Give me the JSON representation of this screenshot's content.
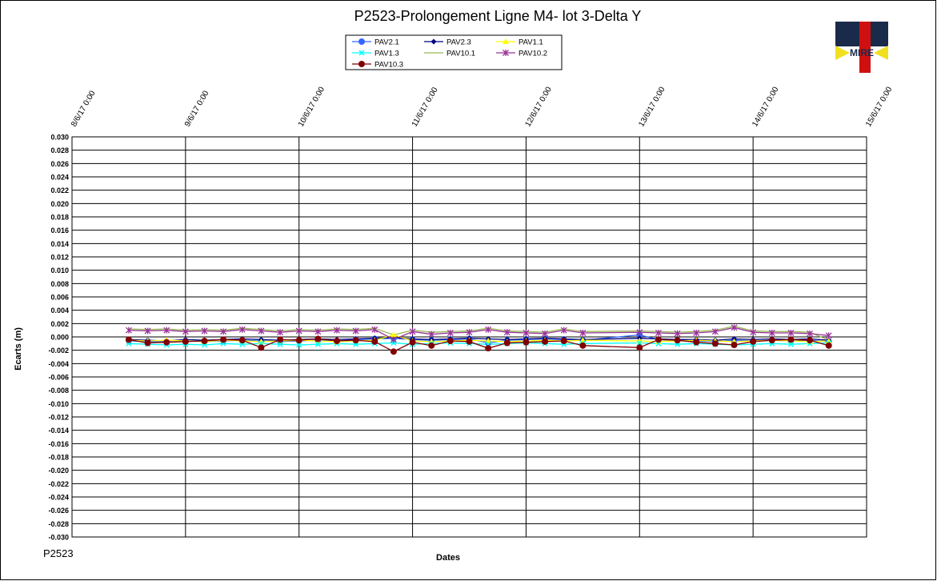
{
  "chart_data": {
    "type": "line",
    "title": "P2523-Prolongement  Ligne  M4- lot 3-Delta Y",
    "x_label": "Dates",
    "y_label": "Ecarts (m)",
    "footer": "P2523",
    "logo": "MIRE",
    "grid": true,
    "x": [
      "2017-06-08T12:00",
      "2017-06-08T16:00",
      "2017-06-08T20:00",
      "2017-06-09T00:00",
      "2017-06-09T04:00",
      "2017-06-09T08:00",
      "2017-06-09T12:00",
      "2017-06-09T16:00",
      "2017-06-09T20:00",
      "2017-06-10T00:00",
      "2017-06-10T04:00",
      "2017-06-10T08:00",
      "2017-06-10T12:00",
      "2017-06-10T16:00",
      "2017-06-10T20:00",
      "2017-06-11T00:00",
      "2017-06-11T04:00",
      "2017-06-11T08:00",
      "2017-06-11T12:00",
      "2017-06-11T16:00",
      "2017-06-11T20:00",
      "2017-06-12T00:00",
      "2017-06-12T04:00",
      "2017-06-12T08:00",
      "2017-06-12T12:00",
      "2017-06-13T00:00",
      "2017-06-13T04:00",
      "2017-06-13T08:00",
      "2017-06-13T12:00",
      "2017-06-13T16:00",
      "2017-06-13T20:00",
      "2017-06-14T00:00",
      "2017-06-14T04:00",
      "2017-06-14T08:00",
      "2017-06-14T12:00",
      "2017-06-14T16:00"
    ],
    "xlim": [
      "2017-06-08T00:00",
      "2017-06-15T00:00"
    ],
    "xticks": [
      {
        "value": "2017-06-08T00:00",
        "label": "8/6/17 0:00"
      },
      {
        "value": "2017-06-09T00:00",
        "label": "9/6/17 0:00"
      },
      {
        "value": "2017-06-10T00:00",
        "label": "10/6/17 0:00"
      },
      {
        "value": "2017-06-11T00:00",
        "label": "11/6/17 0:00"
      },
      {
        "value": "2017-06-12T00:00",
        "label": "12/6/17 0:00"
      },
      {
        "value": "2017-06-13T00:00",
        "label": "13/6/17 0:00"
      },
      {
        "value": "2017-06-14T00:00",
        "label": "14/6/17 0:00"
      },
      {
        "value": "2017-06-15T00:00",
        "label": "15/6/17 0:00"
      }
    ],
    "ylim": [
      -0.03,
      0.03
    ],
    "yticks": [
      {
        "value": -0.03,
        "label": "-0.030"
      },
      {
        "value": -0.028,
        "label": "-0.028"
      },
      {
        "value": -0.026,
        "label": "-0.026"
      },
      {
        "value": -0.024,
        "label": "-0.024"
      },
      {
        "value": -0.022,
        "label": "-0.022"
      },
      {
        "value": -0.02,
        "label": "-0.020"
      },
      {
        "value": -0.018,
        "label": "-0.018"
      },
      {
        "value": -0.016,
        "label": "-0.016"
      },
      {
        "value": -0.014,
        "label": "-0.014"
      },
      {
        "value": -0.012,
        "label": "-0.012"
      },
      {
        "value": -0.01,
        "label": "-0.010"
      },
      {
        "value": -0.008,
        "label": "-0.008"
      },
      {
        "value": -0.006,
        "label": "-0.006"
      },
      {
        "value": -0.004,
        "label": "-0.004"
      },
      {
        "value": -0.002,
        "label": "-0.002"
      },
      {
        "value": 0,
        "label": "0.000"
      },
      {
        "value": 0.002,
        "label": "0.002"
      },
      {
        "value": 0.004,
        "label": "0.004"
      },
      {
        "value": 0.006,
        "label": "0.006"
      },
      {
        "value": 0.008,
        "label": "0.008"
      },
      {
        "value": 0.01,
        "label": "0.010"
      },
      {
        "value": 0.012,
        "label": "0.012"
      },
      {
        "value": 0.014,
        "label": "0.014"
      },
      {
        "value": 0.016,
        "label": "0.016"
      },
      {
        "value": 0.018,
        "label": "0.018"
      },
      {
        "value": 0.02,
        "label": "0.020"
      },
      {
        "value": 0.022,
        "label": "0.022"
      },
      {
        "value": 0.024,
        "label": "0.024"
      },
      {
        "value": 0.026,
        "label": "0.026"
      },
      {
        "value": 0.028,
        "label": "0.028"
      },
      {
        "value": 0.03,
        "label": "0.030"
      }
    ],
    "series": [
      {
        "name": "PAV2.1",
        "color": "#3366ff",
        "marker": "circle",
        "values": [
          -0.0006,
          -0.0007,
          -0.0008,
          -0.0006,
          -0.0007,
          -0.0006,
          -0.0005,
          -0.0006,
          -0.0007,
          -0.0006,
          -0.0005,
          -0.0006,
          -0.0004,
          -0.0003,
          -0.0002,
          -0.0004,
          -0.0005,
          -0.0004,
          -0.0003,
          -0.0009,
          -0.0005,
          -0.0004,
          -0.0003,
          -0.0004,
          -0.0005,
          0.0003,
          -0.0004,
          -0.0005,
          -0.0006,
          -0.0007,
          -0.0005,
          -0.0006,
          -0.0005,
          -0.0006,
          -0.0005,
          -0.0007
        ]
      },
      {
        "name": "PAV2.3",
        "color": "#000080",
        "marker": "diamond",
        "values": [
          -0.0004,
          -0.0005,
          -0.0006,
          -0.0004,
          -0.0005,
          -0.0004,
          -0.0003,
          -0.0004,
          -0.0005,
          -0.0004,
          -0.0003,
          -0.0004,
          -0.0003,
          -0.0002,
          -0.0001,
          -0.0003,
          -0.0004,
          -0.0003,
          -0.0002,
          -0.0003,
          -0.0004,
          -0.0003,
          -0.0002,
          -0.0003,
          -0.0004,
          -0.0002,
          -0.0003,
          -0.0004,
          -0.0004,
          -0.0005,
          -0.0003,
          -0.0004,
          -0.0003,
          -0.0004,
          -0.0003,
          -0.0005
        ]
      },
      {
        "name": "PAV1.1",
        "color": "#ffff00",
        "marker": "triangle",
        "values": [
          -0.0005,
          -0.0006,
          -0.0005,
          -0.0006,
          -0.0007,
          -0.0005,
          -0.0006,
          -0.0007,
          -0.0006,
          -0.0005,
          -0.0006,
          -0.0007,
          -0.0006,
          -0.0005,
          0.0003,
          -0.0006,
          -0.0007,
          -0.0006,
          -0.0005,
          -0.0006,
          -0.0007,
          -0.0006,
          -0.0005,
          -0.0006,
          -0.0005,
          -0.0006,
          -0.0007,
          -0.0006,
          -0.0005,
          -0.0006,
          -0.0007,
          -0.0006,
          -0.0005,
          -0.0006,
          -0.0007,
          -0.0006
        ]
      },
      {
        "name": "PAV1.3",
        "color": "#00ffff",
        "marker": "x",
        "values": [
          -0.001,
          -0.0011,
          -0.0012,
          -0.0011,
          -0.0012,
          -0.001,
          -0.0011,
          -0.001,
          -0.0011,
          -0.0012,
          -0.0011,
          -0.001,
          -0.0011,
          -0.001,
          -0.0009,
          -0.0011,
          -0.001,
          -0.0009,
          -0.001,
          -0.0011,
          -0.001,
          -0.0009,
          -0.001,
          -0.0011,
          -0.001,
          -0.0009,
          -0.001,
          -0.0011,
          -0.001,
          -0.0011,
          -0.0012,
          -0.0011,
          -0.001,
          -0.0011,
          -0.001,
          -0.0009
        ]
      },
      {
        "name": "PAV10.1",
        "color": "#99bb55",
        "marker": "none",
        "values": [
          0.0012,
          0.0011,
          0.0012,
          0.001,
          0.0011,
          0.001,
          0.0013,
          0.0011,
          0.0009,
          0.0011,
          0.001,
          0.0012,
          0.0011,
          0.0013,
          0.0003,
          0.001,
          0.0007,
          0.0008,
          0.0009,
          0.0013,
          0.0009,
          0.0008,
          0.0007,
          0.0012,
          0.0008,
          0.0009,
          0.0008,
          0.0007,
          0.0008,
          0.001,
          0.0016,
          0.0009,
          0.0008,
          0.0008,
          0.0007,
          -0.0005
        ]
      },
      {
        "name": "PAV10.2",
        "color": "#993399",
        "marker": "star",
        "values": [
          0.001,
          0.0009,
          0.001,
          0.0008,
          0.0009,
          0.0008,
          0.0011,
          0.0009,
          0.0007,
          0.0009,
          0.0008,
          0.001,
          0.0009,
          0.0011,
          -0.0004,
          0.0008,
          0.0004,
          0.0006,
          0.0007,
          0.0011,
          0.0007,
          0.0006,
          0.0005,
          0.001,
          0.0006,
          0.0007,
          0.0006,
          0.0005,
          0.0006,
          0.0008,
          0.0014,
          0.0007,
          0.0006,
          0.0006,
          0.0005,
          0.0002
        ]
      },
      {
        "name": "PAV10.3",
        "color": "#800000",
        "marker": "circle",
        "values": [
          -0.0004,
          -0.0009,
          -0.0008,
          -0.0007,
          -0.0006,
          -0.0004,
          -0.0005,
          -0.0016,
          -0.0004,
          -0.0005,
          -0.0003,
          -0.0006,
          -0.0005,
          -0.0007,
          -0.0022,
          -0.0008,
          -0.0013,
          -0.0006,
          -0.0007,
          -0.0017,
          -0.0009,
          -0.0008,
          -0.0007,
          -0.0006,
          -0.0013,
          -0.0016,
          -0.0004,
          -0.0005,
          -0.0008,
          -0.001,
          -0.0012,
          -0.0007,
          -0.0005,
          -0.0004,
          -0.0005,
          -0.0013
        ]
      }
    ]
  }
}
